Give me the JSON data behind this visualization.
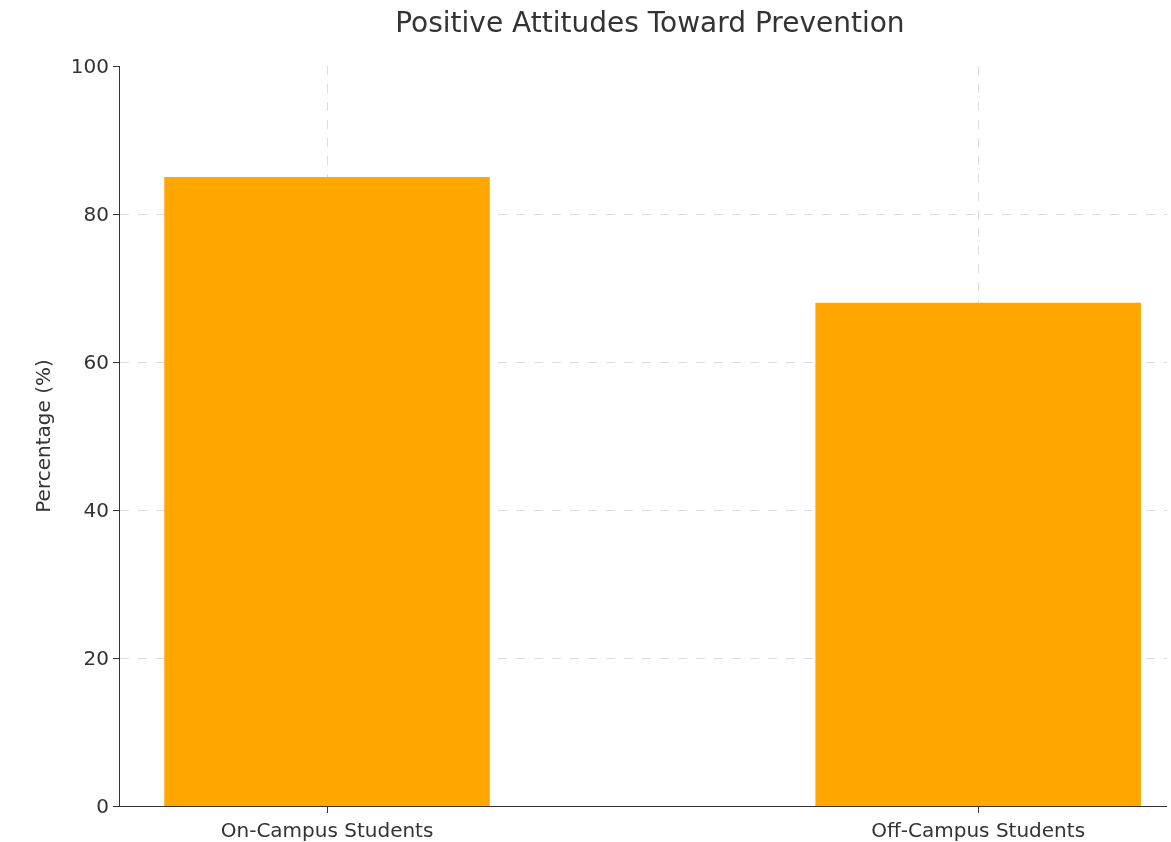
{
  "chart_data": {
    "type": "bar",
    "title": "Positive Attitudes Toward Prevention",
    "ylabel": "Percentage (%)",
    "categories": [
      "On-Campus Students",
      "Off-Campus Students"
    ],
    "values": [
      85,
      68
    ],
    "color": "#ffa600",
    "ylim": [
      0,
      100
    ],
    "yticks": [
      0,
      20,
      40,
      60,
      80,
      100
    ],
    "grid": true
  }
}
